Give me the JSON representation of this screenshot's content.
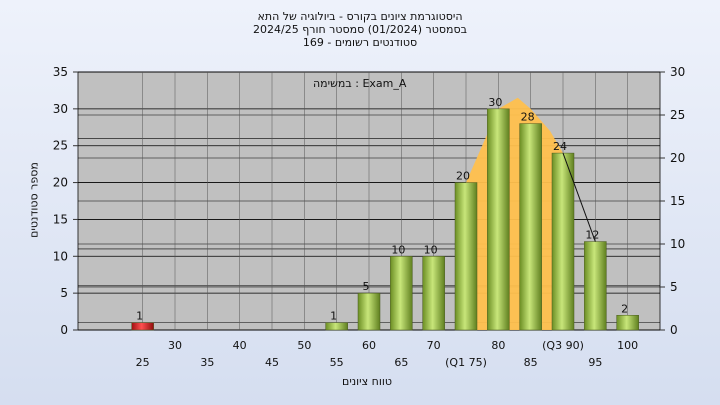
{
  "chart_data": {
    "type": "bar",
    "title_lines": [
      "היסטוגרמת ציונים בקורס - ביולוגיה של התא",
      "בסמסטר (01/2024) סמסטר חורף 2024/25",
      "169 - סטודנטים רשומים"
    ],
    "legend_label": "במשימה : Exam_A",
    "ylabel": "מספר סטודנטים",
    "xlabel": "טווח ציונים",
    "left_axis": {
      "ylim": [
        0,
        35
      ],
      "ticks": [
        0,
        5,
        10,
        15,
        20,
        25,
        30,
        35
      ]
    },
    "right_axis": {
      "ylim": [
        0,
        30
      ],
      "ticks": [
        0,
        5,
        10,
        15,
        20,
        25,
        30
      ]
    },
    "x_tick_labels": [
      {
        "x": 25,
        "label": "25",
        "row": 0
      },
      {
        "x": 30,
        "label": "30",
        "row": 1
      },
      {
        "x": 35,
        "label": "35",
        "row": 0
      },
      {
        "x": 40,
        "label": "40",
        "row": 1
      },
      {
        "x": 45,
        "label": "45",
        "row": 0
      },
      {
        "x": 50,
        "label": "50",
        "row": 1
      },
      {
        "x": 55,
        "label": "55",
        "row": 0
      },
      {
        "x": 60,
        "label": "60",
        "row": 1
      },
      {
        "x": 65,
        "label": "65",
        "row": 0
      },
      {
        "x": 70,
        "label": "70",
        "row": 1
      },
      {
        "x": 75,
        "label": "(Q1 75)",
        "row": 0
      },
      {
        "x": 80,
        "label": "80",
        "row": 1
      },
      {
        "x": 85,
        "label": "85",
        "row": 0
      },
      {
        "x": 90,
        "label": "(Q3 90)",
        "row": 1
      },
      {
        "x": 95,
        "label": "95",
        "row": 0
      },
      {
        "x": 100,
        "label": "100",
        "row": 1
      }
    ],
    "bars": [
      {
        "x": 25,
        "value": 1,
        "label": "1",
        "color": "#e02020"
      },
      {
        "x": 55,
        "value": 1,
        "label": "1",
        "color": "#9acd32"
      },
      {
        "x": 60,
        "value": 5,
        "label": "5",
        "color": "#9acd32"
      },
      {
        "x": 65,
        "value": 10,
        "label": "10",
        "color": "#9acd32"
      },
      {
        "x": 70,
        "value": 10,
        "label": "10",
        "color": "#9acd32"
      },
      {
        "x": 75,
        "value": 20,
        "label": "20",
        "color": "#9acd32"
      },
      {
        "x": 80,
        "value": 30,
        "label": "30",
        "color": "#9acd32"
      },
      {
        "x": 85,
        "value": 28,
        "label": "28",
        "color": "#9acd32"
      },
      {
        "x": 90,
        "value": 24,
        "label": "24",
        "color": "#9acd32"
      },
      {
        "x": 95,
        "value": 12,
        "label": "12",
        "color": "#9acd32"
      },
      {
        "x": 100,
        "value": 2,
        "label": "2",
        "color": "#9acd32"
      }
    ],
    "quartile_area": {
      "color": "#ffc04d",
      "points": [
        [
          75,
          20
        ],
        [
          77,
          24
        ],
        [
          80,
          30
        ],
        [
          83,
          31.5
        ],
        [
          85,
          30
        ],
        [
          88,
          27
        ],
        [
          90,
          24
        ]
      ]
    },
    "trend_line": [
      [
        90,
        24
      ],
      [
        95,
        12
      ]
    ],
    "extra_gridlines_y": [
      1,
      6,
      11,
      26
    ],
    "grid": true,
    "colors": {
      "plot_bg": "#c0c0c0",
      "grid": "#000000",
      "bar_green": "#9acd32",
      "bar_red": "#e02020",
      "area": "#ffc04d"
    }
  }
}
